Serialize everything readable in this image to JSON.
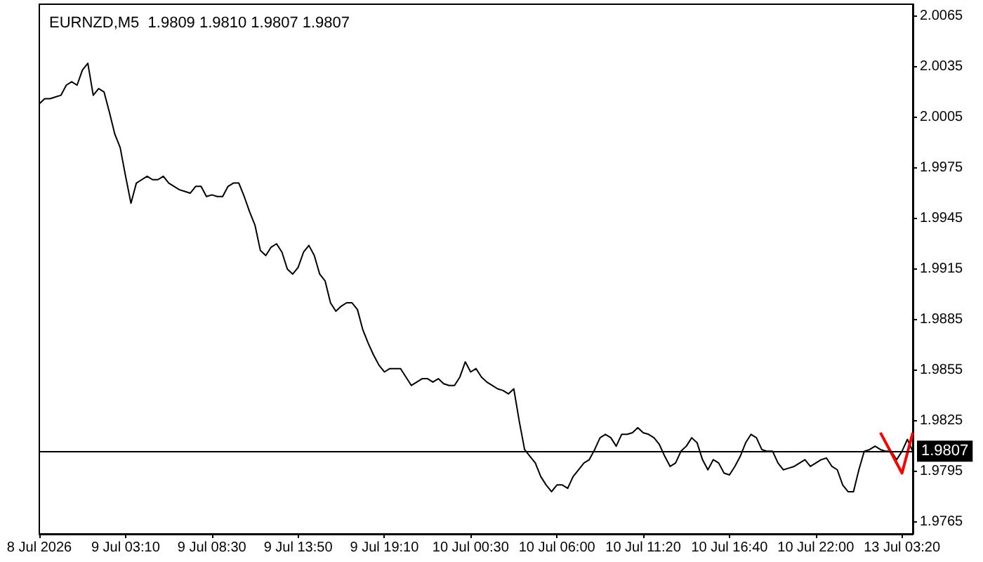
{
  "chart_data": {
    "type": "line",
    "title": "EURNZD,M5  1.9809 1.9810 1.9807 1.9807",
    "categories": [
      "8 Jul 2026",
      null,
      null,
      null,
      null,
      null,
      null,
      null,
      null,
      null,
      null,
      null,
      null,
      null,
      null,
      null,
      "9 Jul 03:10",
      null,
      null,
      null,
      null,
      null,
      null,
      null,
      null,
      null,
      null,
      null,
      null,
      null,
      null,
      null,
      "9 Jul 08:30",
      null,
      null,
      null,
      null,
      null,
      null,
      null,
      null,
      null,
      null,
      null,
      null,
      null,
      null,
      null,
      "9 Jul 13:50",
      null,
      null,
      null,
      null,
      null,
      null,
      null,
      null,
      null,
      null,
      null,
      null,
      null,
      null,
      null,
      "9 Jul 19:10",
      null,
      null,
      null,
      null,
      null,
      null,
      null,
      null,
      null,
      null,
      null,
      null,
      null,
      null,
      null,
      "10 Jul 00:30",
      null,
      null,
      null,
      null,
      null,
      null,
      null,
      null,
      null,
      null,
      null,
      null,
      null,
      null,
      null,
      "10 Jul 06:00",
      null,
      null,
      null,
      null,
      null,
      null,
      null,
      null,
      null,
      null,
      null,
      null,
      null,
      null,
      null,
      "10 Jul 11:20",
      null,
      null,
      null,
      null,
      null,
      null,
      null,
      null,
      null,
      null,
      null,
      null,
      null,
      null,
      null,
      "10 Jul 16:40",
      null,
      null,
      null,
      null,
      null,
      null,
      null,
      null,
      null,
      null,
      null,
      null,
      null,
      null,
      null,
      "10 Jul 22:00",
      null,
      null,
      null,
      null,
      null,
      null,
      null,
      null,
      null,
      null,
      null,
      null,
      null,
      null,
      null,
      "13 Jul 03:20",
      null,
      null
    ],
    "series": [
      {
        "color": "#000000",
        "values": [
          2.0013,
          2.0016,
          2.0016,
          2.0017,
          2.0018,
          2.0024,
          2.0026,
          2.0024,
          2.0033,
          2.0037,
          2.0018,
          2.0022,
          2.002,
          2.0008,
          1.9995,
          1.9987,
          1.997,
          1.9954,
          1.9966,
          1.9968,
          1.997,
          1.9968,
          1.9968,
          1.997,
          1.9966,
          1.9964,
          1.9962,
          1.9961,
          1.996,
          1.9964,
          1.9964,
          1.9958,
          1.9959,
          1.9958,
          1.9958,
          1.9964,
          1.9966,
          1.9966,
          1.9958,
          1.9949,
          1.9941,
          1.9926,
          1.9923,
          1.9928,
          1.993,
          1.9925,
          1.9915,
          1.9912,
          1.9916,
          1.9925,
          1.9929,
          1.9923,
          1.9912,
          1.9908,
          1.9895,
          1.989,
          1.9893,
          1.9895,
          1.9895,
          1.9891,
          1.9879,
          1.9871,
          1.9864,
          1.9858,
          1.9854,
          1.9856,
          1.9856,
          1.9856,
          1.9851,
          1.9846,
          1.9848,
          1.985,
          1.985,
          1.9848,
          1.985,
          1.9847,
          1.9846,
          1.9846,
          1.9851,
          1.986,
          1.9854,
          1.9856,
          1.9851,
          1.9848,
          1.9846,
          1.9844,
          1.9843,
          1.9841,
          1.9844,
          1.9825,
          1.9808,
          1.9804,
          1.98,
          1.9792,
          1.9787,
          1.9783,
          1.9787,
          1.9787,
          1.9785,
          1.9792,
          1.9796,
          1.98,
          1.9802,
          1.9808,
          1.9815,
          1.9817,
          1.9815,
          1.981,
          1.9817,
          1.9817,
          1.9818,
          1.9821,
          1.9818,
          1.9817,
          1.9815,
          1.9811,
          1.9804,
          1.9798,
          1.98,
          1.9807,
          1.981,
          1.9815,
          1.9812,
          1.9802,
          1.9796,
          1.9802,
          1.98,
          1.9794,
          1.9793,
          1.9798,
          1.9804,
          1.9812,
          1.9817,
          1.9815,
          1.9808,
          1.9807,
          1.9807,
          1.98,
          1.9796,
          1.9797,
          1.9798,
          1.98,
          1.9802,
          1.9798,
          1.98,
          1.9802,
          1.9803,
          1.9798,
          1.9796,
          1.9787,
          1.9783,
          1.9783,
          1.9796,
          1.9807,
          1.9808,
          1.981,
          1.9808,
          1.9807,
          1.9807,
          1.9802,
          1.9807,
          1.9814,
          1.9807
        ]
      },
      {
        "color": "#ff0000",
        "values": [
          null,
          null,
          null,
          null,
          null,
          null,
          null,
          null,
          null,
          null,
          null,
          null,
          null,
          null,
          null,
          null,
          null,
          null,
          null,
          null,
          null,
          null,
          null,
          null,
          null,
          null,
          null,
          null,
          null,
          null,
          null,
          null,
          null,
          null,
          null,
          null,
          null,
          null,
          null,
          null,
          null,
          null,
          null,
          null,
          null,
          null,
          null,
          null,
          null,
          null,
          null,
          null,
          null,
          null,
          null,
          null,
          null,
          null,
          null,
          null,
          null,
          null,
          null,
          null,
          null,
          null,
          null,
          null,
          null,
          null,
          null,
          null,
          null,
          null,
          null,
          null,
          null,
          null,
          null,
          null,
          null,
          null,
          null,
          null,
          null,
          null,
          null,
          null,
          null,
          null,
          null,
          null,
          null,
          null,
          null,
          null,
          null,
          null,
          null,
          null,
          null,
          null,
          null,
          null,
          null,
          null,
          null,
          null,
          null,
          null,
          null,
          null,
          null,
          null,
          null,
          null,
          null,
          null,
          null,
          null,
          null,
          null,
          null,
          null,
          null,
          null,
          null,
          null,
          null,
          null,
          null,
          null,
          null,
          null,
          null,
          null,
          null,
          null,
          null,
          null,
          null,
          null,
          null,
          null,
          null,
          null,
          null,
          null,
          null,
          null,
          null,
          null,
          null,
          null,
          null,
          null,
          1.9818,
          null,
          null,
          null,
          1.9794,
          null,
          1.9818
        ]
      }
    ],
    "ylim": [
      1.9758,
      2.0072
    ],
    "yticks": [
      1.9765,
      1.9795,
      1.9825,
      1.9855,
      1.9885,
      1.9915,
      1.9945,
      1.9975,
      2.0005,
      2.0035,
      2.0065
    ],
    "ref_lines": [
      {
        "axis": "y",
        "value": 1.9807,
        "label": "1.9807",
        "color": "#000000"
      }
    ],
    "grid": false,
    "marker": "none",
    "line_style": "solid"
  }
}
